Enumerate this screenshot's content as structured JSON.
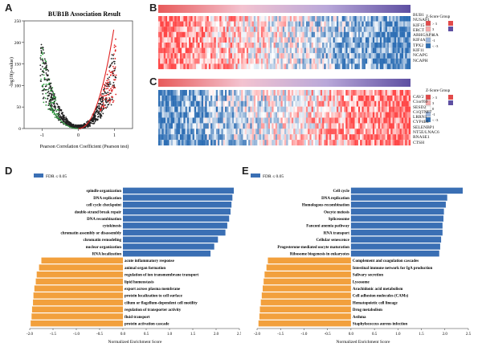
{
  "panels": {
    "A": "A",
    "B": "B",
    "C": "C",
    "D": "D",
    "E": "E"
  },
  "colors": {
    "blue": "#3a6fb4",
    "orange": "#f2a03d",
    "heat_red": "#e24a4a",
    "heat_blue": "#2f6fb3",
    "heat_purple": "#5e4fa2"
  },
  "panel_a": {
    "chart_data": {
      "type": "scatter",
      "title": "BUB1B Association Result",
      "xlabel": "Pearson Correlation Coefficient (Pearson test)",
      "ylabel": "-log10(p-value)",
      "xlim": [
        -1.5,
        1.5
      ],
      "ylim": [
        0,
        250
      ],
      "xticks": [
        "-1",
        "0",
        "1"
      ],
      "yticks": [
        "0",
        "50",
        "100",
        "150",
        "200",
        "250"
      ]
    }
  },
  "panel_b": {
    "genes": [
      "BUB1",
      "NUSAP1",
      "KIF15",
      "ERCT",
      "ARHGAP11A",
      "KIF4A",
      "TPX2",
      "KIF11",
      "NCAPG",
      "NCAPH"
    ],
    "legend": {
      "title": "Z-Score  Group",
      "scale_labels": [
        "> 3",
        "3",
        "0",
        "-1",
        "< -3"
      ]
    }
  },
  "panel_c": {
    "genes": [
      "CAV2",
      "C1orf69",
      "SESD2",
      "C1QTNF7",
      "LRRN1",
      "CYP4B1",
      "SELENBP1",
      "NT5E/LNAC6",
      "RNASE1",
      "CTSH"
    ],
    "legend": {
      "title": "Z-Score  Group",
      "scale_labels": [
        "> 3",
        "3",
        "0",
        "-1",
        "< -3"
      ]
    }
  },
  "panel_d": {
    "legend": "FDR ≤ 0.05",
    "xlabel": "Normalized Enrichment Score",
    "xticks": [
      "-2.0",
      "-1.5",
      "-1.0",
      "-0.5",
      "0.0",
      "0.5",
      "1.0",
      "1.5",
      "2.0",
      "2.5"
    ],
    "chart_data": {
      "type": "bar",
      "orientation": "horizontal",
      "xlim": [
        -2.0,
        2.5
      ],
      "categories": [
        "spindle organization",
        "DNA replication",
        "cell cycle checkpoint",
        "double-strand break repair",
        "DNA recombination",
        "cytokinesis",
        "chromatin assembly or disassembly",
        "chromatin remodeling",
        "nuclear organization",
        "RNA localization",
        "acute inflammatory response",
        "animal organ formation",
        "regulation of ion transmembrane transport",
        "lipid homeostasis",
        "export across plasma membrane",
        "protein localization to cell surface",
        "cilium or flagellum-dependent cell motility",
        "regulation of transporter activity",
        "fluid transport",
        "protein activation cascade"
      ],
      "values": [
        2.38,
        2.35,
        2.33,
        2.31,
        2.28,
        2.24,
        2.2,
        2.04,
        1.96,
        1.88,
        -1.75,
        -1.8,
        -1.85,
        -1.87,
        -1.9,
        -1.92,
        -1.93,
        -1.95,
        -1.96,
        -1.98
      ]
    }
  },
  "panel_e": {
    "legend": "FDR ≤ 0.05",
    "xlabel": "Normalized Enrichment Score",
    "xticks": [
      "-2.0",
      "-1.5",
      "-1.0",
      "-0.5",
      "0.0",
      "0.5",
      "1.0",
      "1.5",
      "2.0",
      "2.5"
    ],
    "chart_data": {
      "type": "bar",
      "orientation": "horizontal",
      "xlim": [
        -2.0,
        2.5
      ],
      "categories": [
        "Cell cycle",
        "DNA replication",
        "Homologous recombination",
        "Oocyte meiosis",
        "Spliceosome",
        "Fanconi anemia pathway",
        "RNA transport",
        "Cellular senescence",
        "Progesterone-mediated oocyte maturation",
        "Ribosome biogenesis in eukaryotes",
        "Complement and coagulation cascades",
        "Intestinal immune network for IgA production",
        "Salivary secretion",
        "Lysosome",
        "Arachidonic acid metabolism",
        "Cell adhesion molecules (CAMs)",
        "Hematopoietic cell lineage",
        "Drug metabolism",
        "Asthma",
        "Staphylococcus aureus infection"
      ],
      "values": [
        2.38,
        2.05,
        2.02,
        1.98,
        1.97,
        1.95,
        1.95,
        1.92,
        1.9,
        1.88,
        -1.77,
        -1.8,
        -1.84,
        -1.86,
        -1.88,
        -1.9,
        -1.92,
        -1.94,
        -1.95,
        -1.97
      ]
    }
  }
}
